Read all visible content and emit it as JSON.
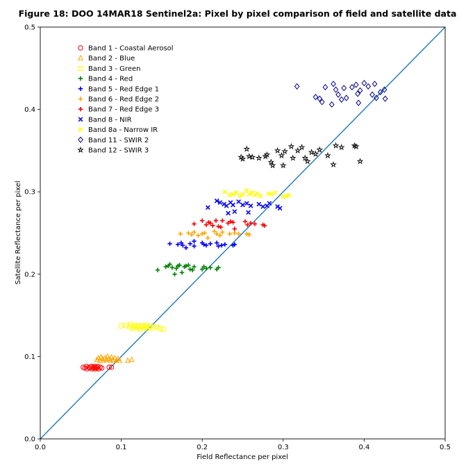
{
  "chart_data": {
    "type": "scatter",
    "title": "Figure 18: DOO 14MAR18  Sentinel2a: Pixel by pixel comparison of field and satellite data",
    "xlabel": "Field Reflectance per pixel",
    "ylabel": "Satellite Reflectance per pixel",
    "xlim": [
      0.0,
      0.5
    ],
    "ylim": [
      0.0,
      0.5
    ],
    "xticks": [
      "0.0",
      "0.1",
      "0.2",
      "0.3",
      "0.4",
      "0.5"
    ],
    "yticks": [
      "0.0",
      "0.1",
      "0.2",
      "0.3",
      "0.4",
      "0.5"
    ],
    "grid": false,
    "legend_position": "upper-left",
    "reference_line": {
      "x": [
        0.0,
        0.5
      ],
      "y": [
        0.0,
        0.5
      ],
      "color": "#1f77b4"
    },
    "series": [
      {
        "name": "Band 1 - Coastal Aerosol",
        "marker": "circle",
        "color": "#ff0000",
        "points": [
          [
            0.053,
            0.087
          ],
          [
            0.055,
            0.086
          ],
          [
            0.057,
            0.088
          ],
          [
            0.058,
            0.085
          ],
          [
            0.06,
            0.087
          ],
          [
            0.061,
            0.086
          ],
          [
            0.063,
            0.088
          ],
          [
            0.064,
            0.085
          ],
          [
            0.065,
            0.087
          ],
          [
            0.066,
            0.086
          ],
          [
            0.067,
            0.088
          ],
          [
            0.068,
            0.085
          ],
          [
            0.069,
            0.087
          ],
          [
            0.07,
            0.086
          ],
          [
            0.071,
            0.088
          ],
          [
            0.072,
            0.085
          ],
          [
            0.074,
            0.087
          ],
          [
            0.076,
            0.086
          ],
          [
            0.085,
            0.087
          ],
          [
            0.088,
            0.087
          ]
        ]
      },
      {
        "name": "Band 2 - Blue",
        "marker": "triangle",
        "color": "#ffa500",
        "points": [
          [
            0.07,
            0.096
          ],
          [
            0.072,
            0.098
          ],
          [
            0.074,
            0.095
          ],
          [
            0.075,
            0.099
          ],
          [
            0.077,
            0.097
          ],
          [
            0.078,
            0.095
          ],
          [
            0.08,
            0.098
          ],
          [
            0.082,
            0.096
          ],
          [
            0.083,
            0.1
          ],
          [
            0.085,
            0.097
          ],
          [
            0.087,
            0.095
          ],
          [
            0.088,
            0.099
          ],
          [
            0.09,
            0.096
          ],
          [
            0.092,
            0.098
          ],
          [
            0.094,
            0.095
          ],
          [
            0.096,
            0.097
          ],
          [
            0.098,
            0.095
          ],
          [
            0.108,
            0.095
          ],
          [
            0.113,
            0.096
          ]
        ]
      },
      {
        "name": "Band 3 - Green",
        "marker": "square",
        "color": "#ffff00",
        "points": [
          [
            0.1,
            0.137
          ],
          [
            0.106,
            0.138
          ],
          [
            0.11,
            0.136
          ],
          [
            0.112,
            0.139
          ],
          [
            0.114,
            0.134
          ],
          [
            0.116,
            0.137
          ],
          [
            0.118,
            0.135
          ],
          [
            0.12,
            0.138
          ],
          [
            0.122,
            0.136
          ],
          [
            0.124,
            0.133
          ],
          [
            0.126,
            0.137
          ],
          [
            0.128,
            0.135
          ],
          [
            0.13,
            0.138
          ],
          [
            0.132,
            0.136
          ],
          [
            0.134,
            0.134
          ],
          [
            0.136,
            0.137
          ],
          [
            0.14,
            0.135
          ],
          [
            0.144,
            0.136
          ],
          [
            0.148,
            0.134
          ],
          [
            0.152,
            0.133
          ]
        ]
      },
      {
        "name": "Band 4 - Red",
        "marker": "plus",
        "color": "#008000",
        "points": [
          [
            0.145,
            0.205
          ],
          [
            0.155,
            0.209
          ],
          [
            0.158,
            0.21
          ],
          [
            0.16,
            0.212
          ],
          [
            0.163,
            0.208
          ],
          [
            0.166,
            0.2
          ],
          [
            0.168,
            0.207
          ],
          [
            0.17,
            0.21
          ],
          [
            0.172,
            0.211
          ],
          [
            0.175,
            0.202
          ],
          [
            0.178,
            0.209
          ],
          [
            0.18,
            0.21
          ],
          [
            0.183,
            0.211
          ],
          [
            0.185,
            0.206
          ],
          [
            0.188,
            0.205
          ],
          [
            0.19,
            0.209
          ],
          [
            0.2,
            0.206
          ],
          [
            0.202,
            0.209
          ],
          [
            0.205,
            0.207
          ],
          [
            0.21,
            0.208
          ],
          [
            0.218,
            0.206
          ],
          [
            0.22,
            0.208
          ]
        ]
      },
      {
        "name": "Band 5 - Red Edge 1",
        "marker": "plus",
        "color": "#0000ff",
        "points": [
          [
            0.16,
            0.237
          ],
          [
            0.17,
            0.236
          ],
          [
            0.174,
            0.238
          ],
          [
            0.176,
            0.235
          ],
          [
            0.18,
            0.232
          ],
          [
            0.185,
            0.237
          ],
          [
            0.19,
            0.24
          ],
          [
            0.19,
            0.234
          ],
          [
            0.2,
            0.238
          ],
          [
            0.202,
            0.236
          ],
          [
            0.205,
            0.235
          ],
          [
            0.21,
            0.237
          ],
          [
            0.218,
            0.238
          ],
          [
            0.22,
            0.234
          ],
          [
            0.224,
            0.235
          ],
          [
            0.228,
            0.236
          ],
          [
            0.238,
            0.235
          ],
          [
            0.24,
            0.236
          ]
        ]
      },
      {
        "name": "Band 6 - Red Edge 2",
        "marker": "plus",
        "color": "#ffa500",
        "points": [
          [
            0.173,
            0.249
          ],
          [
            0.183,
            0.25
          ],
          [
            0.187,
            0.248
          ],
          [
            0.19,
            0.251
          ],
          [
            0.195,
            0.247
          ],
          [
            0.2,
            0.249
          ],
          [
            0.203,
            0.25
          ],
          [
            0.207,
            0.244
          ],
          [
            0.215,
            0.252
          ],
          [
            0.218,
            0.249
          ],
          [
            0.222,
            0.247
          ],
          [
            0.225,
            0.251
          ],
          [
            0.234,
            0.249
          ],
          [
            0.24,
            0.25
          ],
          [
            0.245,
            0.249
          ],
          [
            0.255,
            0.249
          ],
          [
            0.258,
            0.248
          ]
        ]
      },
      {
        "name": "Band 7 - Red Edge 3",
        "marker": "plus",
        "color": "#ff0000",
        "points": [
          [
            0.19,
            0.261
          ],
          [
            0.2,
            0.265
          ],
          [
            0.205,
            0.26
          ],
          [
            0.208,
            0.263
          ],
          [
            0.21,
            0.262
          ],
          [
            0.213,
            0.259
          ],
          [
            0.217,
            0.265
          ],
          [
            0.22,
            0.258
          ],
          [
            0.223,
            0.257
          ],
          [
            0.225,
            0.265
          ],
          [
            0.232,
            0.262
          ],
          [
            0.235,
            0.264
          ],
          [
            0.238,
            0.263
          ],
          [
            0.24,
            0.255
          ],
          [
            0.253,
            0.264
          ],
          [
            0.256,
            0.26
          ],
          [
            0.26,
            0.262
          ],
          [
            0.265,
            0.261
          ],
          [
            0.275,
            0.26
          ],
          [
            0.277,
            0.259
          ]
        ]
      },
      {
        "name": "Band 8 - NIR",
        "marker": "x",
        "color": "#0000ff",
        "points": [
          [
            0.207,
            0.281
          ],
          [
            0.218,
            0.289
          ],
          [
            0.222,
            0.287
          ],
          [
            0.227,
            0.285
          ],
          [
            0.23,
            0.283
          ],
          [
            0.232,
            0.274
          ],
          [
            0.235,
            0.287
          ],
          [
            0.238,
            0.284
          ],
          [
            0.24,
            0.276
          ],
          [
            0.245,
            0.288
          ],
          [
            0.25,
            0.284
          ],
          [
            0.255,
            0.286
          ],
          [
            0.257,
            0.275
          ],
          [
            0.26,
            0.283
          ],
          [
            0.27,
            0.285
          ],
          [
            0.275,
            0.282
          ],
          [
            0.28,
            0.283
          ],
          [
            0.283,
            0.286
          ],
          [
            0.293,
            0.282
          ],
          [
            0.296,
            0.28
          ]
        ]
      },
      {
        "name": "Band 8a - Narrow IR",
        "marker": "x",
        "color": "#ffff00",
        "points": [
          [
            0.228,
            0.3
          ],
          [
            0.234,
            0.296
          ],
          [
            0.238,
            0.297
          ],
          [
            0.242,
            0.299
          ],
          [
            0.247,
            0.295
          ],
          [
            0.25,
            0.297
          ],
          [
            0.255,
            0.302
          ],
          [
            0.258,
            0.297
          ],
          [
            0.262,
            0.299
          ],
          [
            0.265,
            0.296
          ],
          [
            0.268,
            0.298
          ],
          [
            0.272,
            0.295
          ],
          [
            0.282,
            0.298
          ],
          [
            0.285,
            0.297
          ],
          [
            0.29,
            0.299
          ],
          [
            0.3,
            0.294
          ],
          [
            0.304,
            0.295
          ],
          [
            0.307,
            0.296
          ]
        ]
      },
      {
        "name": "Band 11 - SWIR 2",
        "marker": "diamond",
        "color": "#00008b",
        "points": [
          [
            0.317,
            0.428
          ],
          [
            0.34,
            0.415
          ],
          [
            0.345,
            0.413
          ],
          [
            0.348,
            0.409
          ],
          [
            0.352,
            0.427
          ],
          [
            0.36,
            0.406
          ],
          [
            0.362,
            0.431
          ],
          [
            0.365,
            0.424
          ],
          [
            0.368,
            0.418
          ],
          [
            0.372,
            0.412
          ],
          [
            0.375,
            0.426
          ],
          [
            0.378,
            0.414
          ],
          [
            0.385,
            0.427
          ],
          [
            0.39,
            0.43
          ],
          [
            0.392,
            0.419
          ],
          [
            0.393,
            0.408
          ],
          [
            0.395,
            0.423
          ],
          [
            0.4,
            0.432
          ],
          [
            0.405,
            0.428
          ],
          [
            0.41,
            0.418
          ],
          [
            0.413,
            0.431
          ],
          [
            0.415,
            0.414
          ],
          [
            0.42,
            0.421
          ],
          [
            0.425,
            0.424
          ],
          [
            0.426,
            0.413
          ]
        ]
      },
      {
        "name": "Band 12 - SWIR 3",
        "marker": "star",
        "color": "#000000",
        "points": [
          [
            0.248,
            0.342
          ],
          [
            0.25,
            0.34
          ],
          [
            0.255,
            0.352
          ],
          [
            0.258,
            0.343
          ],
          [
            0.262,
            0.342
          ],
          [
            0.27,
            0.341
          ],
          [
            0.278,
            0.343
          ],
          [
            0.28,
            0.345
          ],
          [
            0.285,
            0.336
          ],
          [
            0.287,
            0.332
          ],
          [
            0.293,
            0.35
          ],
          [
            0.298,
            0.344
          ],
          [
            0.3,
            0.332
          ],
          [
            0.302,
            0.349
          ],
          [
            0.31,
            0.355
          ],
          [
            0.312,
            0.341
          ],
          [
            0.318,
            0.35
          ],
          [
            0.323,
            0.354
          ],
          [
            0.327,
            0.341
          ],
          [
            0.33,
            0.337
          ],
          [
            0.335,
            0.348
          ],
          [
            0.34,
            0.346
          ],
          [
            0.345,
            0.351
          ],
          [
            0.355,
            0.344
          ],
          [
            0.362,
            0.333
          ],
          [
            0.365,
            0.356
          ],
          [
            0.372,
            0.354
          ],
          [
            0.388,
            0.356
          ],
          [
            0.39,
            0.355
          ],
          [
            0.395,
            0.337
          ]
        ]
      }
    ]
  }
}
